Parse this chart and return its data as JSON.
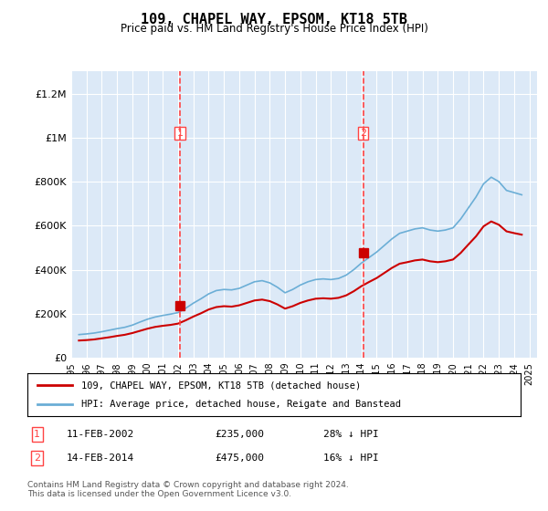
{
  "title": "109, CHAPEL WAY, EPSOM, KT18 5TB",
  "subtitle": "Price paid vs. HM Land Registry's House Price Index (HPI)",
  "background_color": "#dce9f7",
  "plot_bg_color": "#dce9f7",
  "ylim": [
    0,
    1300000
  ],
  "yticks": [
    0,
    200000,
    400000,
    600000,
    800000,
    1000000,
    1200000
  ],
  "ytick_labels": [
    "£0",
    "£200K",
    "£400K",
    "£600K",
    "£800K",
    "£1M",
    "£1.2M"
  ],
  "sale1_date": 2002.12,
  "sale1_price": 235000,
  "sale1_label": "1",
  "sale2_date": 2014.12,
  "sale2_price": 475000,
  "sale2_label": "2",
  "hpi_color": "#6baed6",
  "price_color": "#cc0000",
  "dashed_line_color": "#ff4444",
  "legend_label_price": "109, CHAPEL WAY, EPSOM, KT18 5TB (detached house)",
  "legend_label_hpi": "HPI: Average price, detached house, Reigate and Banstead",
  "table_row1": "1    11-FEB-2002    £235,000    28% ↓ HPI",
  "table_row2": "2    14-FEB-2014    £475,000    16% ↓ HPI",
  "footer": "Contains HM Land Registry data © Crown copyright and database right 2024.\nThis data is licensed under the Open Government Licence v3.0.",
  "hpi_data": {
    "years": [
      1995.5,
      1996.0,
      1996.5,
      1997.0,
      1997.5,
      1998.0,
      1998.5,
      1999.0,
      1999.5,
      2000.0,
      2000.5,
      2001.0,
      2001.5,
      2002.0,
      2002.5,
      2003.0,
      2003.5,
      2004.0,
      2004.5,
      2005.0,
      2005.5,
      2006.0,
      2006.5,
      2007.0,
      2007.5,
      2008.0,
      2008.5,
      2009.0,
      2009.5,
      2010.0,
      2010.5,
      2011.0,
      2011.5,
      2012.0,
      2012.5,
      2013.0,
      2013.5,
      2014.0,
      2014.5,
      2015.0,
      2015.5,
      2016.0,
      2016.5,
      2017.0,
      2017.5,
      2018.0,
      2018.5,
      2019.0,
      2019.5,
      2020.0,
      2020.5,
      2021.0,
      2021.5,
      2022.0,
      2022.5,
      2023.0,
      2023.5,
      2024.0,
      2024.5
    ],
    "values": [
      105000,
      108000,
      112000,
      118000,
      125000,
      132000,
      138000,
      148000,
      162000,
      175000,
      185000,
      192000,
      198000,
      205000,
      225000,
      248000,
      268000,
      290000,
      305000,
      310000,
      308000,
      315000,
      330000,
      345000,
      350000,
      340000,
      320000,
      295000,
      310000,
      330000,
      345000,
      355000,
      358000,
      355000,
      360000,
      375000,
      400000,
      430000,
      455000,
      480000,
      510000,
      540000,
      565000,
      575000,
      585000,
      590000,
      580000,
      575000,
      580000,
      590000,
      630000,
      680000,
      730000,
      790000,
      820000,
      800000,
      760000,
      750000,
      740000
    ]
  },
  "price_data": {
    "years": [
      1995.5,
      1996.0,
      1996.5,
      1997.0,
      1997.5,
      1998.0,
      1998.5,
      1999.0,
      1999.5,
      2000.0,
      2000.5,
      2001.0,
      2001.5,
      2002.0,
      2002.5,
      2003.0,
      2003.5,
      2004.0,
      2004.5,
      2005.0,
      2005.5,
      2006.0,
      2006.5,
      2007.0,
      2007.5,
      2008.0,
      2008.5,
      2009.0,
      2009.5,
      2010.0,
      2010.5,
      2011.0,
      2011.5,
      2012.0,
      2012.5,
      2013.0,
      2013.5,
      2014.0,
      2014.5,
      2015.0,
      2015.5,
      2016.0,
      2016.5,
      2017.0,
      2017.5,
      2018.0,
      2018.5,
      2019.0,
      2019.5,
      2020.0,
      2020.5,
      2021.0,
      2021.5,
      2022.0,
      2022.5,
      2023.0,
      2023.5,
      2024.0,
      2024.5
    ],
    "values": [
      78000,
      80000,
      83000,
      88000,
      93000,
      99000,
      104000,
      112000,
      122000,
      132000,
      140000,
      145000,
      149000,
      155000,
      170000,
      187000,
      202000,
      219000,
      230000,
      234000,
      232000,
      238000,
      249000,
      260000,
      264000,
      257000,
      242000,
      223000,
      234000,
      249000,
      260000,
      268000,
      270000,
      268000,
      272000,
      283000,
      302000,
      325000,
      344000,
      362000,
      385000,
      408000,
      427000,
      434000,
      442000,
      446000,
      438000,
      434000,
      438000,
      446000,
      476000,
      514000,
      551000,
      597000,
      619000,
      604000,
      574000,
      566000,
      559000
    ]
  }
}
